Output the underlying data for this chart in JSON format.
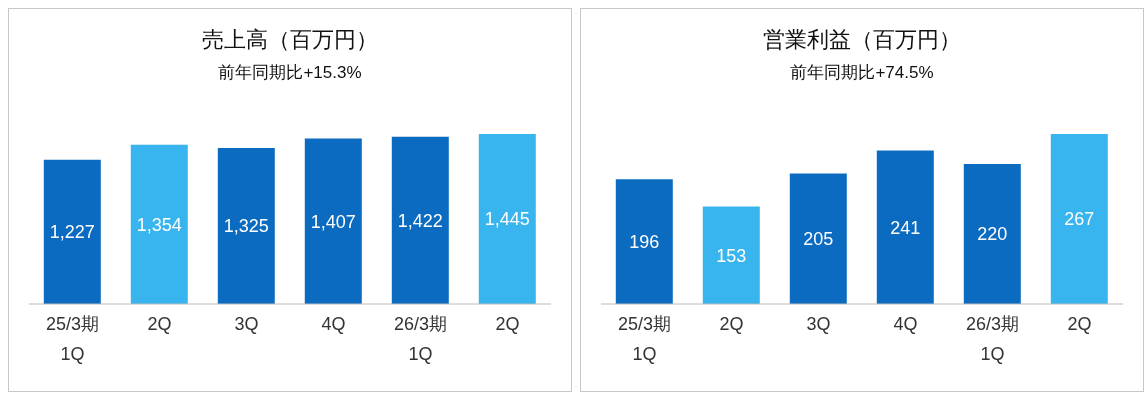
{
  "chart_data": [
    {
      "type": "bar",
      "title": "売上高（百万円）",
      "subtitle": "前年同期比+15.3%",
      "categories": [
        "25/3期\n1Q",
        "2Q",
        "3Q",
        "4Q",
        "26/3期\n1Q",
        "2Q"
      ],
      "values": [
        1227,
        1354,
        1325,
        1407,
        1422,
        1445
      ],
      "value_labels": [
        "1,227",
        "1,354",
        "1,325",
        "1,407",
        "1,422",
        "1,445"
      ],
      "colors": [
        "#0a6bc0",
        "#38b5ef",
        "#0a6bc0",
        "#0a6bc0",
        "#0a6bc0",
        "#38b5ef"
      ]
    },
    {
      "type": "bar",
      "title": "営業利益（百万円）",
      "subtitle": "前年同期比+74.5%",
      "categories": [
        "25/3期\n1Q",
        "2Q",
        "3Q",
        "4Q",
        "26/3期\n1Q",
        "2Q"
      ],
      "values": [
        196,
        153,
        205,
        241,
        220,
        267
      ],
      "colors": [
        "#0a6bc0",
        "#38b5ef",
        "#0a6bc0",
        "#0a6bc0",
        "#0a6bc0",
        "#38b5ef"
      ],
      "data_labels": true
    }
  ]
}
